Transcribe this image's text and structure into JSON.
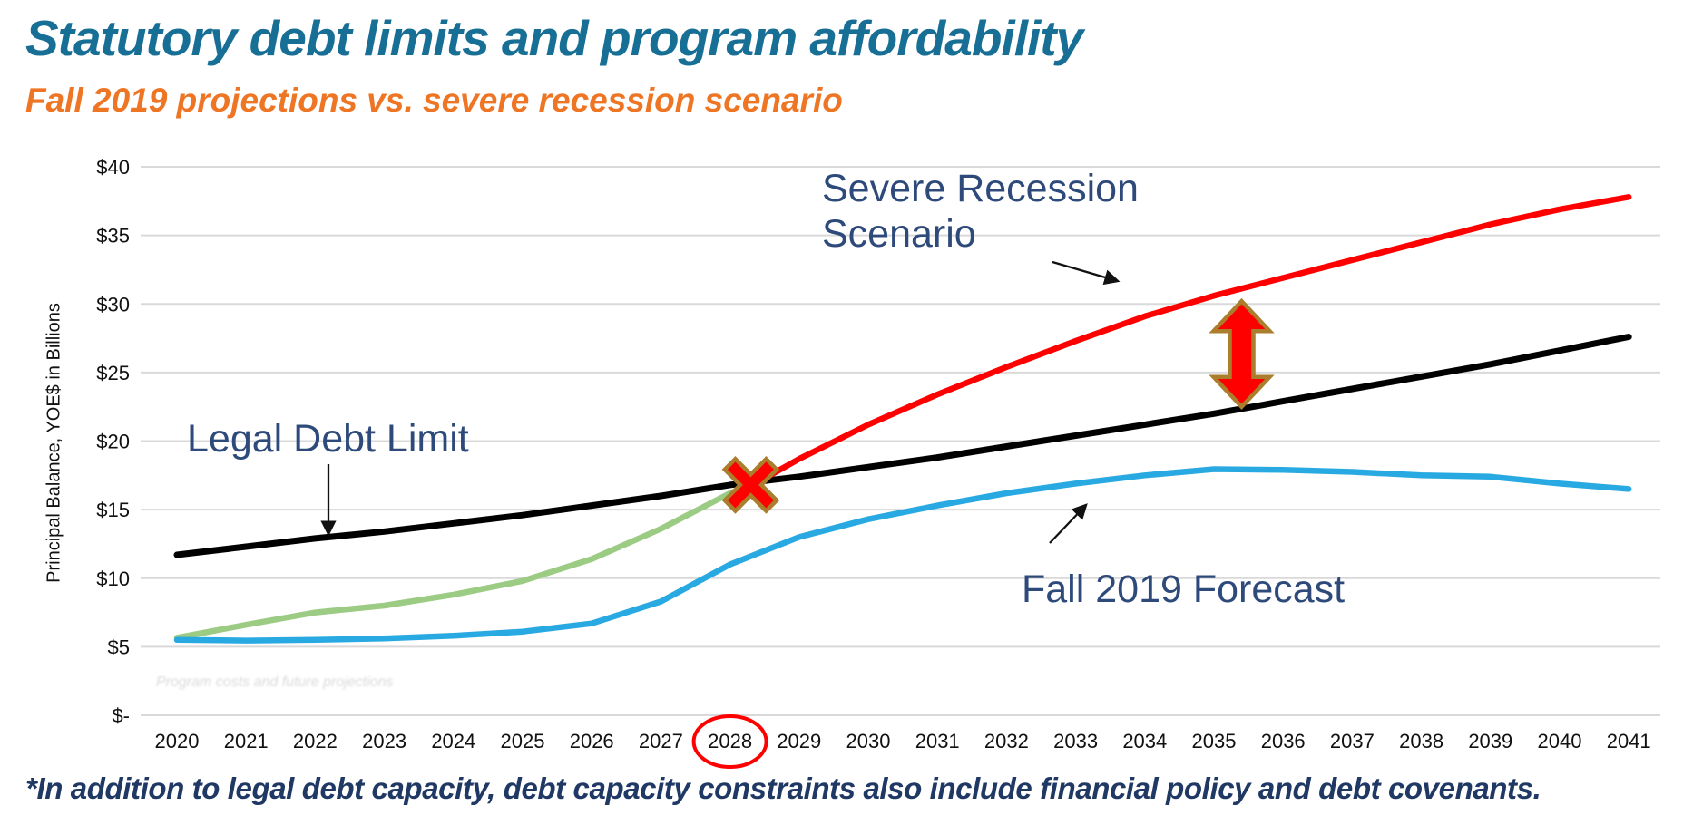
{
  "header": {
    "title": "Statutory debt limits and program affordability",
    "subtitle": "Fall 2019 projections vs. severe recession scenario"
  },
  "footnote": "*In addition to legal debt capacity, debt capacity constraints also include financial policy and debt covenants.",
  "watermark": "Program costs and future projections",
  "colors": {
    "title_teal": "#186F96",
    "subtitle_orange": "#EE7523",
    "navy_text": "#2D4A7A",
    "footnote_navy": "#1F3864",
    "gridline": "#D9D9D9",
    "legal_debt_limit_line": "#000000",
    "severe_recession_line": "#FF0000",
    "fall_2019_line": "#29A9E1",
    "green_leadin_line": "#9CCB84",
    "marker_gold_outline": "#AA7E2C",
    "marker_red": "#FF0000",
    "circle_red": "#FF0000"
  },
  "annotations": {
    "legal_debt_limit": "Legal Debt Limit",
    "severe_recession": "Severe Recession Scenario",
    "fall_2019": "Fall 2019 Forecast"
  },
  "chart_data": {
    "type": "line",
    "title": "",
    "xlabel": "",
    "ylabel": "Principal Balance, YOE$ in Billions",
    "ylim": [
      0,
      40
    ],
    "grid": "horizontal",
    "legend_position": "none (inline text annotations with arrows)",
    "y_ticks": [
      {
        "label": "$40",
        "value": 40
      },
      {
        "label": "$35",
        "value": 35
      },
      {
        "label": "$30",
        "value": 30
      },
      {
        "label": "$25",
        "value": 25
      },
      {
        "label": "$20",
        "value": 20
      },
      {
        "label": "$15",
        "value": 15
      },
      {
        "label": "$10",
        "value": 10
      },
      {
        "label": "$5",
        "value": 5
      },
      {
        "label": "$-",
        "value": 0
      }
    ],
    "x_ticks": [
      2020,
      2021,
      2022,
      2023,
      2024,
      2025,
      2026,
      2027,
      2028,
      2029,
      2030,
      2031,
      2032,
      2033,
      2034,
      2035,
      2036,
      2037,
      2038,
      2039,
      2040,
      2041
    ],
    "circled_x_tick": 2028,
    "series": [
      {
        "name": "Unlabeled green lead-in (2020-2028)",
        "color": "#9CCB84",
        "width": 6.5,
        "points": [
          [
            2020,
            5.65
          ],
          [
            2021,
            6.6
          ],
          [
            2022,
            7.5
          ],
          [
            2023,
            8.0
          ],
          [
            2024,
            8.8
          ],
          [
            2025,
            9.8
          ],
          [
            2026,
            11.4
          ],
          [
            2027,
            13.6
          ],
          [
            2028,
            16.2
          ],
          [
            2028.35,
            16.85
          ]
        ]
      },
      {
        "name": "Fall 2019 Forecast",
        "color": "#29A9E1",
        "width": 6.5,
        "points": [
          [
            2020,
            5.5
          ],
          [
            2021,
            5.45
          ],
          [
            2022,
            5.5
          ],
          [
            2023,
            5.6
          ],
          [
            2024,
            5.8
          ],
          [
            2025,
            6.1
          ],
          [
            2026,
            6.7
          ],
          [
            2027,
            8.3
          ],
          [
            2028,
            11.0
          ],
          [
            2029,
            13.0
          ],
          [
            2030,
            14.3
          ],
          [
            2031,
            15.3
          ],
          [
            2032,
            16.2
          ],
          [
            2033,
            16.9
          ],
          [
            2034,
            17.5
          ],
          [
            2035,
            17.95
          ],
          [
            2036,
            17.9
          ],
          [
            2037,
            17.75
          ],
          [
            2038,
            17.5
          ],
          [
            2039,
            17.4
          ],
          [
            2040,
            16.9
          ],
          [
            2041,
            16.5
          ]
        ]
      },
      {
        "name": "Legal Debt Limit",
        "color": "#000000",
        "width": 7,
        "points": [
          [
            2020,
            11.7
          ],
          [
            2021,
            12.3
          ],
          [
            2022,
            12.9
          ],
          [
            2023,
            13.4
          ],
          [
            2024,
            14.0
          ],
          [
            2025,
            14.6
          ],
          [
            2026,
            15.3
          ],
          [
            2027,
            16.0
          ],
          [
            2028,
            16.8
          ],
          [
            2029,
            17.4
          ],
          [
            2030,
            18.1
          ],
          [
            2031,
            18.8
          ],
          [
            2032,
            19.6
          ],
          [
            2033,
            20.4
          ],
          [
            2034,
            21.2
          ],
          [
            2035,
            22.0
          ],
          [
            2036,
            22.9
          ],
          [
            2037,
            23.8
          ],
          [
            2038,
            24.7
          ],
          [
            2039,
            25.6
          ],
          [
            2040,
            26.6
          ],
          [
            2041,
            27.6
          ]
        ]
      },
      {
        "name": "Severe Recession Scenario",
        "color": "#FF0000",
        "width": 6.5,
        "points": [
          [
            2028.35,
            16.85
          ],
          [
            2029,
            18.7
          ],
          [
            2030,
            21.2
          ],
          [
            2031,
            23.4
          ],
          [
            2032,
            25.4
          ],
          [
            2033,
            27.3
          ],
          [
            2034,
            29.1
          ],
          [
            2035,
            30.6
          ],
          [
            2036,
            31.9
          ],
          [
            2037,
            33.2
          ],
          [
            2038,
            34.5
          ],
          [
            2039,
            35.8
          ],
          [
            2040,
            36.9
          ],
          [
            2041,
            37.8
          ]
        ]
      }
    ],
    "markers": {
      "crossing_x": {
        "year": 2028.3,
        "value": 16.8,
        "meaning": "Severe recession path crosses Legal Debt Limit"
      },
      "risk_gap_arrow": {
        "year": 2035.4,
        "from_value": 22.5,
        "to_value": 30.2,
        "meaning": "Gap between severe recession scenario and legal debt limit"
      },
      "circled_year": 2028
    }
  }
}
